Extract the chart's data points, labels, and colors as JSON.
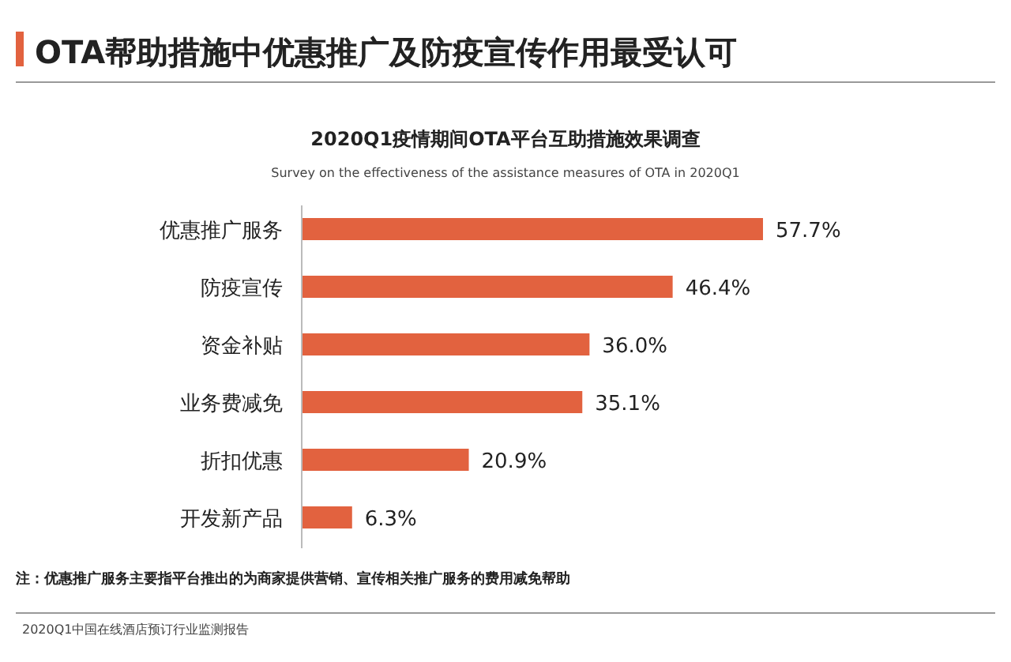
{
  "chart_data": {
    "type": "bar",
    "orientation": "horizontal",
    "title": "OTA帮助措施中优惠推广及防疫宣传作用最受认可",
    "subtitle": "2020Q1疫情期间OTA平台互助措施效果调查",
    "categories": [
      "优惠推广服务",
      "防疫宣传",
      "资金补贴",
      "业务费减免",
      "折扣优惠",
      "开发新产品"
    ],
    "values": [
      57.7,
      46.4,
      36.0,
      35.1,
      20.9,
      6.3
    ],
    "value_labels": [
      "57.7%",
      "46.4%",
      "36.0%",
      "35.1%",
      "20.9%",
      "6.3%"
    ],
    "color": "#e2623f",
    "annotations": [
      "Survey on the effectiveness of the assistance measures of OTA in 2020Q1",
      "注：优惠推广服务主要指平台推出的为商家提供营销、宣传相关推广服务的费用减免帮助",
      "2020Q1中国在线酒店预订行业监测报告"
    ]
  }
}
